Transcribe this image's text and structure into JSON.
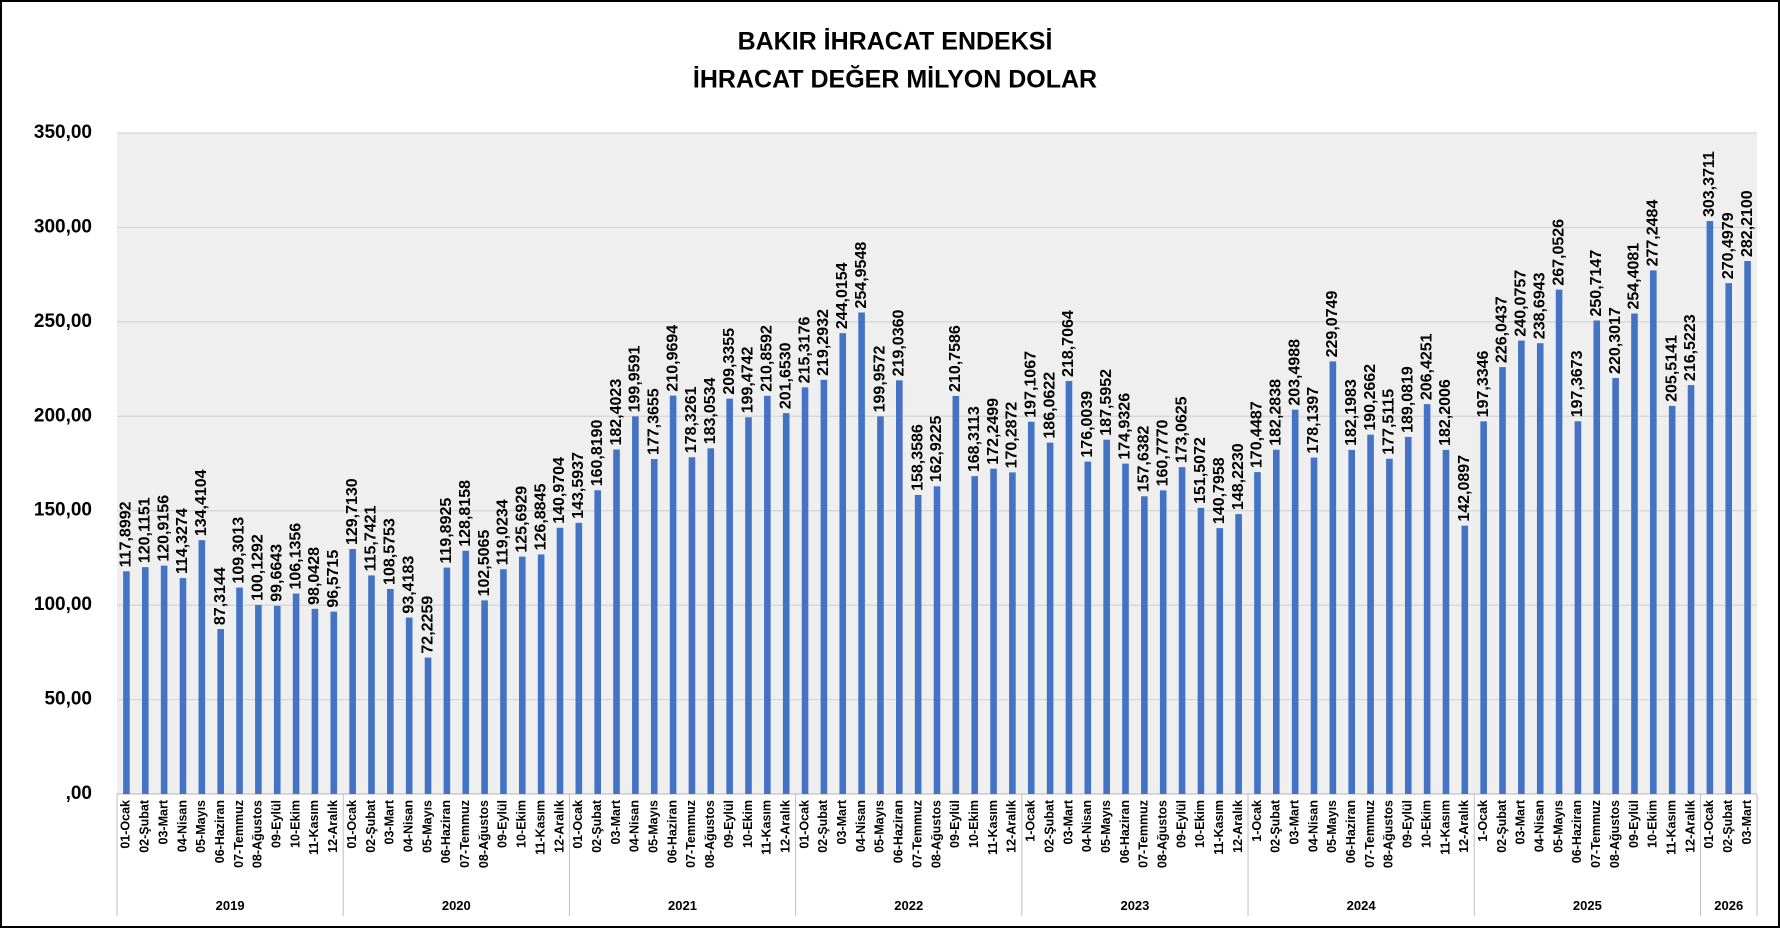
{
  "chart_data": {
    "type": "bar",
    "title": [
      "BAKIR İHRACAT ENDEKSİ",
      "İHRACAT DEĞER MİLYON DOLAR"
    ],
    "color": "#4472c4",
    "ylim": [
      0,
      350
    ],
    "yticks": [
      {
        "value": 0,
        "label": ",00"
      },
      {
        "value": 50,
        "label": "50,00"
      },
      {
        "value": 100,
        "label": "100,00"
      },
      {
        "value": 150,
        "label": "150,00"
      },
      {
        "value": 200,
        "label": "200,00"
      },
      {
        "value": 250,
        "label": "250,00"
      },
      {
        "value": 300,
        "label": "300,00"
      },
      {
        "value": 350,
        "label": "350,00"
      }
    ],
    "grid": true,
    "groups": [
      {
        "label": "2019",
        "categories": [
          "01-Ocak",
          "02-Şubat",
          "03-Mart",
          "04-Nisan",
          "05-Mayıs",
          "06-Haziran",
          "07-Temmuz",
          "08-Ağustos",
          "09-Eylül",
          "10-Ekim",
          "11-Kasım",
          "12-Aralık"
        ],
        "values": [
          117.8992,
          120.1151,
          120.9156,
          114.3274,
          134.4104,
          87.3144,
          109.3013,
          100.1292,
          99.6643,
          106.1356,
          98.0428,
          96.5715
        ],
        "value_labels": [
          "117,8992",
          "120,1151",
          "120,9156",
          "114,3274",
          "134,4104",
          "87,3144",
          "109,3013",
          "100,1292",
          "99,6643",
          "106,1356",
          "98,0428",
          "96,5715"
        ]
      },
      {
        "label": "2020",
        "categories": [
          "01-Ocak",
          "02-Şubat",
          "03-Mart",
          "04-Nisan",
          "05-Mayıs",
          "06-Haziran",
          "07-Temmuz",
          "08-Ağustos",
          "09-Eylül",
          "10-Ekim",
          "11-Kasım",
          "12-Aralık"
        ],
        "values": [
          129.713,
          115.7421,
          108.5753,
          93.4183,
          72.2259,
          119.8925,
          128.8158,
          102.5065,
          119.0234,
          125.6929,
          126.8845,
          140.9704
        ],
        "value_labels": [
          "129,7130",
          "115,7421",
          "108,5753",
          "93,4183",
          "72,2259",
          "119,8925",
          "128,8158",
          "102,5065",
          "119,0234",
          "125,6929",
          "126,8845",
          "140,9704"
        ]
      },
      {
        "label": "2021",
        "categories": [
          "01-Ocak",
          "02-Şubat",
          "03-Mart",
          "04-Nisan",
          "05-Mayıs",
          "06-Haziran",
          "07-Temmuz",
          "08-Ağustos",
          "09-Eylül",
          "10-Ekim",
          "11-Kasım",
          "12-Aralık"
        ],
        "values": [
          143.5937,
          160.819,
          182.4023,
          199.9591,
          177.3655,
          210.9694,
          178.3261,
          183.0534,
          209.3355,
          199.4742,
          210.8592,
          201.653
        ],
        "value_labels": [
          "143,5937",
          "160,8190",
          "182,4023",
          "199,9591",
          "177,3655",
          "210,9694",
          "178,3261",
          "183,0534",
          "209,3355",
          "199,4742",
          "210,8592",
          "201,6530"
        ]
      },
      {
        "label": "2022",
        "categories": [
          "01-Ocak",
          "02-Şubat",
          "03-Mart",
          "04-Nisan",
          "05-Mayıs",
          "06-Haziran",
          "07-Temmuz",
          "08-Ağustos",
          "09-Eylül",
          "10-Ekim",
          "11-Kasım",
          "12-Aralık"
        ],
        "values": [
          215.3176,
          219.2932,
          244.0154,
          254.9548,
          199.9572,
          219.036,
          158.3586,
          162.9225,
          210.7586,
          168.3113,
          172.2499,
          170.2872
        ],
        "value_labels": [
          "215,3176",
          "219,2932",
          "244,0154",
          "254,9548",
          "199,9572",
          "219,0360",
          "158,3586",
          "162,9225",
          "210,7586",
          "168,3113",
          "172,2499",
          "170,2872"
        ]
      },
      {
        "label": "2023",
        "categories": [
          "1-Ocak",
          "02-Şubat",
          "03-Mart",
          "04-Nisan",
          "05-Mayıs",
          "06-Haziran",
          "07-Temmuz",
          "08-Ağustos",
          "09-Eylül",
          "10-Ekim",
          "11-Kasım",
          "12-Aralık"
        ],
        "values": [
          197.1067,
          186.0622,
          218.7064,
          176.0039,
          187.5952,
          174.9326,
          157.6382,
          160.777,
          173.0625,
          151.5072,
          140.7958,
          148.223
        ],
        "value_labels": [
          "197,1067",
          "186,0622",
          "218,7064",
          "176,0039",
          "187,5952",
          "174,9326",
          "157,6382",
          "160,7770",
          "173,0625",
          "151,5072",
          "140,7958",
          "148,2230"
        ]
      },
      {
        "label": "2024",
        "categories": [
          "1-Ocak",
          "02-Şubat",
          "03-Mart",
          "04-Nisan",
          "05-Mayıs",
          "06-Haziran",
          "07-Temmuz",
          "08-Ağustos",
          "09-Eylül",
          "10-Ekim",
          "11-Kasım",
          "12-Aralık"
        ],
        "values": [
          170.4487,
          182.2838,
          203.4988,
          178.1397,
          229.0749,
          182.1983,
          190.2662,
          177.5115,
          189.0819,
          206.4251,
          182.2006,
          142.0897
        ],
        "value_labels": [
          "170,4487",
          "182,2838",
          "203,4988",
          "178,1397",
          "229,0749",
          "182,1983",
          "190,2662",
          "177,5115",
          "189,0819",
          "206,4251",
          "182,2006",
          "142,0897"
        ]
      },
      {
        "label": "2025",
        "categories": [
          "1-Ocak",
          "02-Şubat",
          "03-Mart",
          "04-Nisan",
          "05-Mayıs",
          "06-Haziran",
          "07-Temmuz",
          "08-Ağustos",
          "09-Eylül",
          "10-Ekim",
          "11-Kasım",
          "12-Aralık"
        ],
        "values": [
          197.3346,
          226.0437,
          240.0757,
          238.6943,
          267.0526,
          197.3673,
          250.7147,
          220.3017,
          254.4081,
          277.2484,
          205.5141,
          216.5223
        ],
        "value_labels": [
          "197,3346",
          "226,0437",
          "240,0757",
          "238,6943",
          "267,0526",
          "197,3673",
          "250,7147",
          "220,3017",
          "254,4081",
          "277,2484",
          "205,5141",
          "216,5223"
        ]
      },
      {
        "label": "2026",
        "categories": [
          "01-Ocak",
          "02-Şubat",
          "03-Mart"
        ],
        "values": [
          303.3711,
          270.4979,
          282.21
        ],
        "value_labels": [
          "303,3711",
          "270,4979",
          "282,2100"
        ]
      }
    ]
  }
}
